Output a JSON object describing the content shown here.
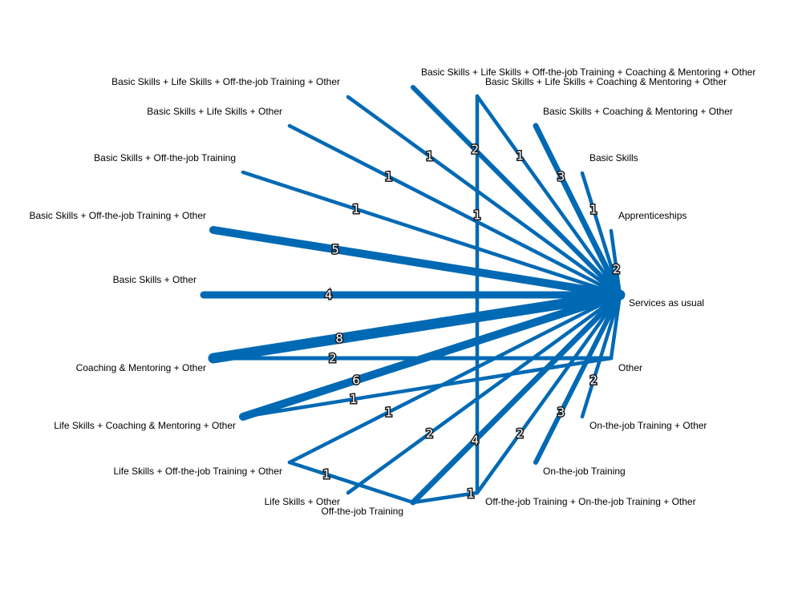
{
  "colors": {
    "edge": "#0069b4",
    "label": "#000000"
  },
  "nodes": [
    {
      "id": "sau",
      "label": "Services as usual"
    },
    {
      "id": "app",
      "label": "Apprenticeships"
    },
    {
      "id": "bs",
      "label": "Basic Skills"
    },
    {
      "id": "bs_cm_o",
      "label": "Basic Skills + Coaching & Mentoring + Other"
    },
    {
      "id": "bs_ls_cm_o",
      "label": "Basic Skills + Life Skills + Coaching & Mentoring + Other"
    },
    {
      "id": "bs_ls_ofj_cm_o",
      "label": "Basic Skills + Life Skills + Off-the-job Training + Coaching & Mentoring + Other"
    },
    {
      "id": "bs_ls_ofj_o",
      "label": "Basic Skills + Life Skills + Off-the-job Training + Other"
    },
    {
      "id": "bs_ls_o",
      "label": "Basic Skills + Life Skills + Other"
    },
    {
      "id": "bs_ofj",
      "label": "Basic Skills + Off-the-job Training"
    },
    {
      "id": "bs_ofj_o",
      "label": "Basic Skills + Off-the-job Training + Other"
    },
    {
      "id": "bs_o",
      "label": "Basic Skills + Other"
    },
    {
      "id": "cm_o",
      "label": "Coaching & Mentoring + Other"
    },
    {
      "id": "ls_cm_o",
      "label": "Life Skills + Coaching & Mentoring + Other"
    },
    {
      "id": "ls_ofj_o",
      "label": "Life Skills + Off-the-job Training + Other"
    },
    {
      "id": "ls_o",
      "label": "Life Skills + Other"
    },
    {
      "id": "ofj",
      "label": "Off-the-job Training"
    },
    {
      "id": "ofj_onj_o",
      "label": "Off-the-job Training + On-the-job Training + Other"
    },
    {
      "id": "onj",
      "label": "On-the-job Training"
    },
    {
      "id": "onj_o",
      "label": "On-the-job Training + Other"
    },
    {
      "id": "other",
      "label": "Other"
    }
  ],
  "edges": [
    {
      "source": "cm_o",
      "target": "sau",
      "weight": "8"
    },
    {
      "source": "ls_cm_o",
      "target": "sau",
      "weight": "6"
    },
    {
      "source": "bs_ofj_o",
      "target": "sau",
      "weight": "5"
    },
    {
      "source": "bs_o",
      "target": "sau",
      "weight": "4"
    },
    {
      "source": "ofj",
      "target": "sau",
      "weight": "4"
    },
    {
      "source": "bs_cm_o",
      "target": "sau",
      "weight": "3"
    },
    {
      "source": "onj",
      "target": "sau",
      "weight": "3"
    },
    {
      "source": "bs_ls_ofj_cm_o",
      "target": "sau",
      "weight": "2"
    },
    {
      "source": "app",
      "target": "sau",
      "weight": "2"
    },
    {
      "source": "cm_o",
      "target": "other",
      "weight": "2"
    },
    {
      "source": "ls_o",
      "target": "sau",
      "weight": "2"
    },
    {
      "source": "ofj_onj_o",
      "target": "sau",
      "weight": "2"
    },
    {
      "source": "onj_o",
      "target": "sau",
      "weight": "2"
    },
    {
      "source": "bs_ls_ofj_o",
      "target": "sau",
      "weight": "1"
    },
    {
      "source": "bs_ls_o",
      "target": "sau",
      "weight": "1"
    },
    {
      "source": "bs_ls_cm_o",
      "target": "sau",
      "weight": "1"
    },
    {
      "source": "bs_ofj",
      "target": "sau",
      "weight": "1"
    },
    {
      "source": "bs",
      "target": "sau",
      "weight": "1"
    },
    {
      "source": "bs_ls_cm_o",
      "target": "ofj_onj_o",
      "weight": "1"
    },
    {
      "source": "ls_cm_o",
      "target": "other",
      "weight": "1"
    },
    {
      "source": "ls_ofj_o",
      "target": "sau",
      "weight": "1"
    },
    {
      "source": "ls_ofj_o",
      "target": "ofj",
      "weight": "1"
    },
    {
      "source": "ofj",
      "target": "ofj_onj_o",
      "weight": "1"
    },
    {
      "source": "other",
      "target": "sau",
      "weight": ""
    }
  ]
}
